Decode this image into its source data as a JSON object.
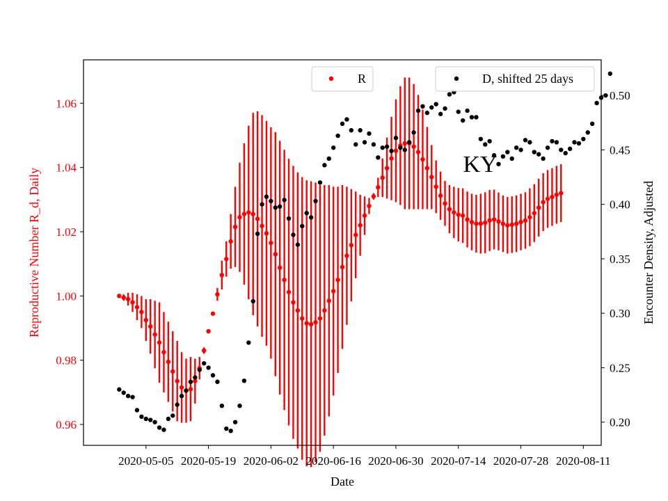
{
  "chart_data": {
    "type": "scatter",
    "title": "",
    "annotation": "KY",
    "xlabel": "Date",
    "ylabel_left": "Reproductive Number R_d, Daily",
    "ylabel_right": "Encounter Density, Adjusted",
    "x_ticks": [
      "2020-05-05",
      "2020-05-19",
      "2020-06-02",
      "2020-06-16",
      "2020-06-30",
      "2020-07-14",
      "2020-07-28",
      "2020-08-11"
    ],
    "y_left_ticks": [
      "0.96",
      "0.98",
      "1.00",
      "1.02",
      "1.04",
      "1.06"
    ],
    "y_right_ticks": [
      "0.20",
      "0.25",
      "0.30",
      "0.35",
      "0.40",
      "0.45",
      "0.50"
    ],
    "x_range": [
      "2020-04-21",
      "2020-08-15"
    ],
    "y_left_range": [
      0.9535,
      1.0735
    ],
    "y_right_range": [
      0.1787,
      0.5327
    ],
    "colors": {
      "r_series": "#ff0000",
      "d_series": "#000000",
      "left_axis_text": "#ff0000"
    },
    "legend": [
      {
        "label": "R",
        "position": "top-center"
      },
      {
        "label": "D, shifted 25 days",
        "position": "top-right"
      }
    ],
    "r_series": {
      "name": "R",
      "start_date": "2020-04-29",
      "values": [
        1.0,
        0.9995,
        0.999,
        0.998,
        0.9965,
        0.995,
        0.9925,
        0.9905,
        0.988,
        0.9855,
        0.9825,
        0.9795,
        0.9765,
        0.9735,
        0.9715,
        0.9705,
        0.971,
        0.9735,
        0.9775,
        0.983,
        0.989,
        0.9945,
        1.0005,
        1.0065,
        1.0115,
        1.017,
        1.0215,
        1.0245,
        1.0255,
        1.026,
        1.0255,
        1.024,
        1.0218,
        1.0195,
        1.0165,
        1.013,
        1.0088,
        1.005,
        1.0012,
        0.998,
        0.9955,
        0.993,
        0.9915,
        0.9912,
        0.9918,
        0.993,
        0.9955,
        0.9985,
        1.0015,
        1.005,
        1.009,
        1.0125,
        1.0158,
        1.019,
        1.022,
        1.025,
        1.028,
        1.031,
        1.0338,
        1.0368,
        1.0398,
        1.0428,
        1.0452,
        1.0468,
        1.0475,
        1.0475,
        1.0465,
        1.0448,
        1.0425,
        1.0398,
        1.037,
        1.034,
        1.0312,
        1.0288,
        1.027,
        1.026,
        1.0253,
        1.025,
        1.0238,
        1.023,
        1.0225,
        1.0225,
        1.0228,
        1.0235,
        1.0238,
        1.0232,
        1.0225,
        1.022,
        1.0222,
        1.0225,
        1.023,
        1.0235,
        1.0245,
        1.0258,
        1.0275,
        1.0292,
        1.0302,
        1.0308,
        1.0315,
        1.032
      ],
      "errors": [
        0.0,
        0.001,
        0.002,
        0.003,
        0.004,
        0.005,
        0.0065,
        0.0085,
        0.0105,
        0.0125,
        0.0125,
        0.0125,
        0.0125,
        0.0125,
        0.011,
        0.01,
        0.01,
        0.007,
        0.0035,
        0.001,
        0.0005,
        0.0,
        0.002,
        0.0045,
        0.0055,
        0.0085,
        0.0125,
        0.017,
        0.022,
        0.027,
        0.0315,
        0.0335,
        0.0345,
        0.035,
        0.036,
        0.038,
        0.0395,
        0.0405,
        0.0415,
        0.0425,
        0.043,
        0.044,
        0.0445,
        0.0445,
        0.0435,
        0.0415,
        0.039,
        0.036,
        0.0325,
        0.029,
        0.0255,
        0.0215,
        0.0175,
        0.0135,
        0.0095,
        0.006,
        0.0025,
        0.001,
        0.003,
        0.006,
        0.0095,
        0.013,
        0.016,
        0.0185,
        0.0205,
        0.0205,
        0.0195,
        0.0178,
        0.0155,
        0.0128,
        0.01,
        0.0082,
        0.0075,
        0.007,
        0.0075,
        0.008,
        0.0083,
        0.0085,
        0.0087,
        0.0088,
        0.009,
        0.0093,
        0.0095,
        0.0095,
        0.0093,
        0.009,
        0.0088,
        0.0088,
        0.0088,
        0.0088,
        0.0088,
        0.0088,
        0.009,
        0.009,
        0.009,
        0.009,
        0.009,
        0.009,
        0.009,
        0.009
      ]
    },
    "d_series": {
      "name": "D, shifted 25 days",
      "start_date": "2020-04-29",
      "values": [
        0.23,
        0.227,
        0.224,
        0.223,
        0.211,
        0.205,
        0.203,
        0.202,
        0.2,
        0.195,
        0.193,
        0.203,
        0.206,
        0.216,
        0.224,
        0.229,
        0.237,
        0.241,
        0.248,
        0.254,
        0.25,
        0.243,
        0.237,
        0.215,
        0.194,
        0.192,
        0.2,
        0.215,
        0.238,
        0.273,
        0.311,
        0.373,
        0.4,
        0.407,
        0.403,
        0.397,
        0.398,
        0.404,
        0.387,
        0.372,
        0.363,
        0.38,
        0.392,
        0.388,
        0.403,
        0.42,
        0.436,
        0.442,
        0.452,
        0.463,
        0.474,
        0.478,
        0.468,
        0.455,
        0.468,
        0.457,
        0.465,
        0.455,
        0.443,
        0.452,
        0.453,
        0.449,
        0.461,
        0.452,
        0.45,
        0.457,
        0.466,
        0.486,
        0.49,
        0.484,
        0.489,
        0.492,
        0.483,
        0.488,
        0.501,
        0.503,
        0.485,
        0.477,
        0.486,
        0.48,
        0.48,
        0.46,
        0.455,
        0.458,
        0.445,
        0.437,
        0.444,
        0.448,
        0.442,
        0.452,
        0.45,
        0.459,
        0.457,
        0.448,
        0.446,
        0.442,
        0.452,
        0.458,
        0.457,
        0.45,
        0.447,
        0.451,
        0.457,
        0.456,
        0.46,
        0.466,
        0.474,
        0.493,
        0.498,
        0.5,
        0.52
      ]
    }
  }
}
